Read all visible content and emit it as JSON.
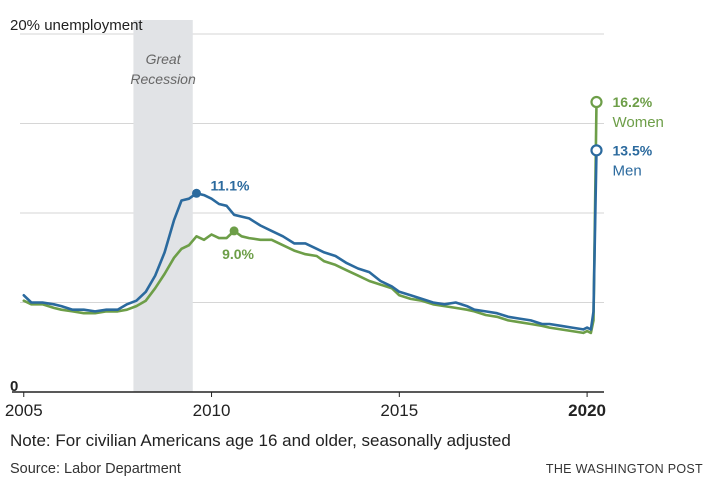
{
  "chart_data": {
    "type": "line",
    "ylabel": "20% unemployment",
    "ylim": [
      0,
      20
    ],
    "yticks": [
      {
        "value": 20,
        "label": "20% unemployment"
      },
      {
        "value": 15,
        "label": ""
      },
      {
        "value": 10,
        "label": ""
      },
      {
        "value": 5,
        "label": ""
      },
      {
        "value": 0,
        "label": "0"
      }
    ],
    "xlim": [
      2004.9,
      2020.45
    ],
    "xticks": [
      {
        "value": 2005,
        "label": "2005",
        "bold": false
      },
      {
        "value": 2010,
        "label": "2010",
        "bold": false
      },
      {
        "value": 2015,
        "label": "2015",
        "bold": false
      },
      {
        "value": 2020,
        "label": "2020",
        "bold": true
      }
    ],
    "recession": {
      "start": 2007.92,
      "end": 2009.5,
      "label_line1": "Great",
      "label_line2": "Recession"
    },
    "series": [
      {
        "name": "Men",
        "color": "#2b6a9e",
        "points": [
          [
            2005.0,
            5.4
          ],
          [
            2005.2,
            5.0
          ],
          [
            2005.5,
            5.0
          ],
          [
            2005.8,
            4.9
          ],
          [
            2006.0,
            4.8
          ],
          [
            2006.3,
            4.6
          ],
          [
            2006.6,
            4.6
          ],
          [
            2006.9,
            4.5
          ],
          [
            2007.2,
            4.6
          ],
          [
            2007.5,
            4.6
          ],
          [
            2007.75,
            4.9
          ],
          [
            2008.0,
            5.1
          ],
          [
            2008.25,
            5.6
          ],
          [
            2008.5,
            6.5
          ],
          [
            2008.75,
            7.8
          ],
          [
            2009.0,
            9.6
          ],
          [
            2009.2,
            10.7
          ],
          [
            2009.4,
            10.8
          ],
          [
            2009.6,
            11.1
          ],
          [
            2009.8,
            11.0
          ],
          [
            2010.0,
            10.8
          ],
          [
            2010.2,
            10.5
          ],
          [
            2010.4,
            10.4
          ],
          [
            2010.6,
            9.9
          ],
          [
            2010.8,
            9.8
          ],
          [
            2011.0,
            9.7
          ],
          [
            2011.3,
            9.3
          ],
          [
            2011.6,
            9.0
          ],
          [
            2011.9,
            8.7
          ],
          [
            2012.2,
            8.3
          ],
          [
            2012.5,
            8.3
          ],
          [
            2012.8,
            8.0
          ],
          [
            2013.0,
            7.8
          ],
          [
            2013.3,
            7.6
          ],
          [
            2013.6,
            7.2
          ],
          [
            2013.9,
            6.9
          ],
          [
            2014.2,
            6.7
          ],
          [
            2014.5,
            6.2
          ],
          [
            2014.8,
            5.9
          ],
          [
            2015.0,
            5.6
          ],
          [
            2015.3,
            5.4
          ],
          [
            2015.6,
            5.2
          ],
          [
            2015.9,
            5.0
          ],
          [
            2016.2,
            4.9
          ],
          [
            2016.5,
            5.0
          ],
          [
            2016.8,
            4.8
          ],
          [
            2017.0,
            4.6
          ],
          [
            2017.3,
            4.5
          ],
          [
            2017.6,
            4.4
          ],
          [
            2017.9,
            4.2
          ],
          [
            2018.2,
            4.1
          ],
          [
            2018.5,
            4.0
          ],
          [
            2018.8,
            3.8
          ],
          [
            2019.0,
            3.8
          ],
          [
            2019.3,
            3.7
          ],
          [
            2019.6,
            3.6
          ],
          [
            2019.9,
            3.5
          ],
          [
            2020.0,
            3.6
          ],
          [
            2020.1,
            3.5
          ],
          [
            2020.17,
            4.5
          ],
          [
            2020.25,
            13.5
          ]
        ]
      },
      {
        "name": "Women",
        "color": "#6d9e48",
        "points": [
          [
            2005.0,
            5.1
          ],
          [
            2005.2,
            4.9
          ],
          [
            2005.5,
            4.9
          ],
          [
            2005.8,
            4.7
          ],
          [
            2006.0,
            4.6
          ],
          [
            2006.3,
            4.5
          ],
          [
            2006.6,
            4.4
          ],
          [
            2006.9,
            4.4
          ],
          [
            2007.2,
            4.5
          ],
          [
            2007.5,
            4.5
          ],
          [
            2007.75,
            4.6
          ],
          [
            2008.0,
            4.8
          ],
          [
            2008.25,
            5.1
          ],
          [
            2008.5,
            5.8
          ],
          [
            2008.75,
            6.6
          ],
          [
            2009.0,
            7.5
          ],
          [
            2009.2,
            8.0
          ],
          [
            2009.4,
            8.2
          ],
          [
            2009.6,
            8.7
          ],
          [
            2009.8,
            8.5
          ],
          [
            2010.0,
            8.8
          ],
          [
            2010.2,
            8.6
          ],
          [
            2010.4,
            8.6
          ],
          [
            2010.6,
            9.0
          ],
          [
            2010.8,
            8.7
          ],
          [
            2011.0,
            8.6
          ],
          [
            2011.3,
            8.5
          ],
          [
            2011.6,
            8.5
          ],
          [
            2011.9,
            8.2
          ],
          [
            2012.2,
            7.9
          ],
          [
            2012.5,
            7.7
          ],
          [
            2012.8,
            7.6
          ],
          [
            2013.0,
            7.3
          ],
          [
            2013.3,
            7.1
          ],
          [
            2013.6,
            6.8
          ],
          [
            2013.9,
            6.5
          ],
          [
            2014.2,
            6.2
          ],
          [
            2014.5,
            6.0
          ],
          [
            2014.8,
            5.8
          ],
          [
            2015.0,
            5.4
          ],
          [
            2015.3,
            5.2
          ],
          [
            2015.6,
            5.1
          ],
          [
            2015.9,
            4.9
          ],
          [
            2016.2,
            4.8
          ],
          [
            2016.5,
            4.7
          ],
          [
            2016.8,
            4.6
          ],
          [
            2017.0,
            4.5
          ],
          [
            2017.3,
            4.3
          ],
          [
            2017.6,
            4.2
          ],
          [
            2017.9,
            4.0
          ],
          [
            2018.2,
            3.9
          ],
          [
            2018.5,
            3.8
          ],
          [
            2018.8,
            3.7
          ],
          [
            2019.0,
            3.6
          ],
          [
            2019.3,
            3.5
          ],
          [
            2019.6,
            3.4
          ],
          [
            2019.9,
            3.3
          ],
          [
            2020.0,
            3.4
          ],
          [
            2020.1,
            3.3
          ],
          [
            2020.17,
            4.0
          ],
          [
            2020.25,
            16.2
          ]
        ]
      }
    ],
    "annotations": [
      {
        "series": "Men",
        "x": 2009.6,
        "y": 11.1,
        "label": "11.1%",
        "marker": "filled"
      },
      {
        "series": "Women",
        "x": 2010.6,
        "y": 9.0,
        "label": "9.0%",
        "marker": "filled"
      },
      {
        "series": "Women",
        "x": 2020.25,
        "y": 16.2,
        "label": "16.2%",
        "name": "Women",
        "marker": "open"
      },
      {
        "series": "Men",
        "x": 2020.25,
        "y": 13.5,
        "label": "13.5%",
        "name": "Men",
        "marker": "open"
      }
    ]
  },
  "footer": {
    "note": "Note: For civilian Americans age 16 and older, seasonally adjusted",
    "source": "Source: Labor Department",
    "credit": "THE WASHINGTON POST"
  }
}
